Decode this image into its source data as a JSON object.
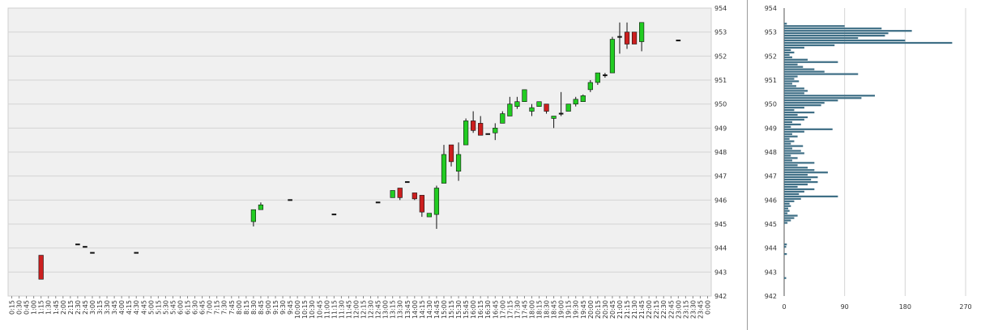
{
  "chart_data": [
    {
      "type": "candlestick",
      "title": "",
      "xlabel": "",
      "ylabel": "",
      "ylim": [
        942,
        954
      ],
      "y_ticks": [
        942,
        943,
        944,
        945,
        946,
        947,
        948,
        949,
        950,
        951,
        952,
        953,
        954
      ],
      "grid": true,
      "x_ticks": [
        "0:15",
        "0:30",
        "0:45",
        "1:00",
        "1:15",
        "1:30",
        "1:45",
        "2:00",
        "2:15",
        "2:30",
        "2:45",
        "3:00",
        "3:15",
        "3:30",
        "3:45",
        "4:00",
        "4:15",
        "4:30",
        "4:45",
        "5:00",
        "5:15",
        "5:30",
        "5:45",
        "6:00",
        "6:15",
        "6:30",
        "6:45",
        "7:00",
        "7:15",
        "7:30",
        "7:45",
        "8:00",
        "8:15",
        "8:30",
        "8:45",
        "9:00",
        "9:15",
        "9:30",
        "9:45",
        "10:00",
        "10:15",
        "10:30",
        "10:45",
        "11:00",
        "11:15",
        "11:30",
        "11:45",
        "12:00",
        "12:15",
        "12:30",
        "12:45",
        "13:00",
        "13:15",
        "13:30",
        "13:45",
        "14:00",
        "14:15",
        "14:30",
        "14:45",
        "15:00",
        "15:15",
        "15:30",
        "15:45",
        "16:00",
        "16:15",
        "16:30",
        "16:45",
        "17:00",
        "17:15",
        "17:30",
        "17:45",
        "18:00",
        "18:15",
        "18:30",
        "18:45",
        "19:00",
        "19:15",
        "19:30",
        "19:45",
        "20:00",
        "20:15",
        "20:30",
        "20:45",
        "21:00",
        "21:15",
        "21:30",
        "21:45",
        "22:00",
        "22:15",
        "22:30",
        "22:45",
        "23:00",
        "23:15",
        "23:30",
        "23:45",
        "0:00"
      ],
      "colors": {
        "up": "#22cc22",
        "down": "#cc1f1f",
        "doji": "#111111",
        "wick": "#111111"
      },
      "candles": [
        {
          "t": "1:15",
          "o": 943.7,
          "h": 943.7,
          "l": 942.7,
          "c": 942.7
        },
        {
          "t": "2:30",
          "o": 944.15,
          "h": 944.15,
          "l": 944.15,
          "c": 944.15
        },
        {
          "t": "2:45",
          "o": 944.05,
          "h": 944.05,
          "l": 944.05,
          "c": 944.05
        },
        {
          "t": "3:00",
          "o": 943.8,
          "h": 943.8,
          "l": 943.8,
          "c": 943.8
        },
        {
          "t": "4:30",
          "o": 943.8,
          "h": 943.8,
          "l": 943.8,
          "c": 943.8
        },
        {
          "t": "8:30",
          "o": 945.1,
          "h": 945.6,
          "l": 944.9,
          "c": 945.6
        },
        {
          "t": "8:45",
          "o": 945.6,
          "h": 945.9,
          "l": 945.6,
          "c": 945.8
        },
        {
          "t": "9:45",
          "o": 946.0,
          "h": 946.0,
          "l": 946.0,
          "c": 946.0
        },
        {
          "t": "11:15",
          "o": 945.4,
          "h": 945.4,
          "l": 945.4,
          "c": 945.4
        },
        {
          "t": "12:45",
          "o": 945.9,
          "h": 945.9,
          "l": 945.9,
          "c": 945.9
        },
        {
          "t": "13:15",
          "o": 946.1,
          "h": 946.4,
          "l": 946.1,
          "c": 946.4
        },
        {
          "t": "13:30",
          "o": 946.5,
          "h": 946.5,
          "l": 946.0,
          "c": 946.1
        },
        {
          "t": "13:45",
          "o": 946.75,
          "h": 946.75,
          "l": 946.75,
          "c": 946.75
        },
        {
          "t": "14:00",
          "o": 946.3,
          "h": 946.3,
          "l": 946.0,
          "c": 946.05
        },
        {
          "t": "14:15",
          "o": 946.2,
          "h": 946.2,
          "l": 945.3,
          "c": 945.5
        },
        {
          "t": "14:30",
          "o": 945.3,
          "h": 945.45,
          "l": 945.3,
          "c": 945.45
        },
        {
          "t": "14:45",
          "o": 945.4,
          "h": 946.6,
          "l": 944.8,
          "c": 946.5
        },
        {
          "t": "15:00",
          "o": 946.7,
          "h": 948.3,
          "l": 946.7,
          "c": 947.9
        },
        {
          "t": "15:15",
          "o": 948.3,
          "h": 948.3,
          "l": 947.4,
          "c": 947.6
        },
        {
          "t": "15:30",
          "o": 947.2,
          "h": 948.4,
          "l": 946.8,
          "c": 947.9
        },
        {
          "t": "15:45",
          "o": 948.3,
          "h": 949.4,
          "l": 948.3,
          "c": 949.3
        },
        {
          "t": "16:00",
          "o": 949.3,
          "h": 949.7,
          "l": 948.8,
          "c": 948.9
        },
        {
          "t": "16:15",
          "o": 949.2,
          "h": 949.5,
          "l": 948.7,
          "c": 948.7
        },
        {
          "t": "16:30",
          "o": 948.75,
          "h": 948.75,
          "l": 948.75,
          "c": 948.75
        },
        {
          "t": "16:45",
          "o": 948.8,
          "h": 949.2,
          "l": 948.5,
          "c": 949.0
        },
        {
          "t": "17:00",
          "o": 949.2,
          "h": 949.7,
          "l": 949.2,
          "c": 949.6
        },
        {
          "t": "17:15",
          "o": 949.5,
          "h": 950.3,
          "l": 949.5,
          "c": 950.0
        },
        {
          "t": "17:30",
          "o": 949.9,
          "h": 950.3,
          "l": 949.8,
          "c": 950.1
        },
        {
          "t": "17:45",
          "o": 950.1,
          "h": 950.6,
          "l": 950.1,
          "c": 950.6
        },
        {
          "t": "18:00",
          "o": 949.7,
          "h": 950.0,
          "l": 949.5,
          "c": 949.85
        },
        {
          "t": "18:15",
          "o": 949.9,
          "h": 950.1,
          "l": 949.9,
          "c": 950.1
        },
        {
          "t": "18:30",
          "o": 950.0,
          "h": 950.0,
          "l": 949.6,
          "c": 949.7
        },
        {
          "t": "18:45",
          "o": 949.4,
          "h": 949.5,
          "l": 949.0,
          "c": 949.5
        },
        {
          "t": "19:00",
          "o": 949.6,
          "h": 950.5,
          "l": 949.5,
          "c": 949.6
        },
        {
          "t": "19:15",
          "o": 949.7,
          "h": 950.0,
          "l": 949.7,
          "c": 950.0
        },
        {
          "t": "19:30",
          "o": 950.0,
          "h": 950.3,
          "l": 949.9,
          "c": 950.2
        },
        {
          "t": "19:45",
          "o": 950.1,
          "h": 950.4,
          "l": 950.1,
          "c": 950.35
        },
        {
          "t": "20:00",
          "o": 950.6,
          "h": 951.0,
          "l": 950.5,
          "c": 950.9
        },
        {
          "t": "20:15",
          "o": 950.9,
          "h": 951.3,
          "l": 950.8,
          "c": 951.3
        },
        {
          "t": "20:30",
          "o": 951.2,
          "h": 951.3,
          "l": 951.1,
          "c": 951.15
        },
        {
          "t": "20:45",
          "o": 951.3,
          "h": 952.8,
          "l": 951.3,
          "c": 952.7
        },
        {
          "t": "21:00",
          "o": 952.8,
          "h": 953.4,
          "l": 952.1,
          "c": 952.75
        },
        {
          "t": "21:15",
          "o": 953.0,
          "h": 953.4,
          "l": 952.3,
          "c": 952.5
        },
        {
          "t": "21:30",
          "o": 953.0,
          "h": 953.0,
          "l": 952.5,
          "c": 952.5
        },
        {
          "t": "21:45",
          "o": 952.6,
          "h": 953.4,
          "l": 952.2,
          "c": 953.4
        },
        {
          "t": "23:00",
          "o": 952.65,
          "h": 952.65,
          "l": 952.65,
          "c": 952.65
        }
      ]
    },
    {
      "type": "bar",
      "orientation": "horizontal",
      "title": "",
      "xlabel": "",
      "ylabel": "",
      "xlim": [
        0,
        270
      ],
      "x_ticks": [
        0,
        90,
        180,
        270
      ],
      "ylim": [
        942,
        954
      ],
      "y_ticks": [
        942,
        943,
        944,
        945,
        946,
        947,
        948,
        949,
        950,
        951,
        952,
        953,
        954
      ],
      "grid": true,
      "bar_color": "#3f6f86",
      "bars": [
        {
          "price": 953.35,
          "value": 4
        },
        {
          "price": 953.25,
          "value": 90
        },
        {
          "price": 953.15,
          "value": 145
        },
        {
          "price": 953.05,
          "value": 190
        },
        {
          "price": 952.95,
          "value": 155
        },
        {
          "price": 952.85,
          "value": 150
        },
        {
          "price": 952.75,
          "value": 110
        },
        {
          "price": 952.65,
          "value": 180
        },
        {
          "price": 952.55,
          "value": 250
        },
        {
          "price": 952.45,
          "value": 75
        },
        {
          "price": 952.35,
          "value": 30
        },
        {
          "price": 952.25,
          "value": 10
        },
        {
          "price": 952.15,
          "value": 15
        },
        {
          "price": 952.05,
          "value": 8
        },
        {
          "price": 951.95,
          "value": 12
        },
        {
          "price": 951.85,
          "value": 35
        },
        {
          "price": 951.75,
          "value": 80
        },
        {
          "price": 951.65,
          "value": 20
        },
        {
          "price": 951.55,
          "value": 28
        },
        {
          "price": 951.45,
          "value": 45
        },
        {
          "price": 951.35,
          "value": 60
        },
        {
          "price": 951.25,
          "value": 110
        },
        {
          "price": 951.15,
          "value": 20
        },
        {
          "price": 951.05,
          "value": 15
        },
        {
          "price": 950.95,
          "value": 22
        },
        {
          "price": 950.85,
          "value": 12
        },
        {
          "price": 950.75,
          "value": 18
        },
        {
          "price": 950.65,
          "value": 30
        },
        {
          "price": 950.55,
          "value": 35
        },
        {
          "price": 950.45,
          "value": 30
        },
        {
          "price": 950.35,
          "value": 135
        },
        {
          "price": 950.25,
          "value": 115
        },
        {
          "price": 950.15,
          "value": 80
        },
        {
          "price": 950.05,
          "value": 60
        },
        {
          "price": 949.95,
          "value": 55
        },
        {
          "price": 949.85,
          "value": 30
        },
        {
          "price": 949.75,
          "value": 15
        },
        {
          "price": 949.65,
          "value": 45
        },
        {
          "price": 949.55,
          "value": 20
        },
        {
          "price": 949.45,
          "value": 35
        },
        {
          "price": 949.35,
          "value": 30
        },
        {
          "price": 949.25,
          "value": 12
        },
        {
          "price": 949.15,
          "value": 25
        },
        {
          "price": 949.05,
          "value": 10
        },
        {
          "price": 948.95,
          "value": 72
        },
        {
          "price": 948.85,
          "value": 30
        },
        {
          "price": 948.75,
          "value": 12
        },
        {
          "price": 948.65,
          "value": 20
        },
        {
          "price": 948.55,
          "value": 8
        },
        {
          "price": 948.45,
          "value": 15
        },
        {
          "price": 948.35,
          "value": 10
        },
        {
          "price": 948.25,
          "value": 28
        },
        {
          "price": 948.15,
          "value": 12
        },
        {
          "price": 948.05,
          "value": 25
        },
        {
          "price": 947.95,
          "value": 30
        },
        {
          "price": 947.85,
          "value": 10
        },
        {
          "price": 947.75,
          "value": 20
        },
        {
          "price": 947.65,
          "value": 12
        },
        {
          "price": 947.55,
          "value": 45
        },
        {
          "price": 947.45,
          "value": 20
        },
        {
          "price": 947.35,
          "value": 35
        },
        {
          "price": 947.25,
          "value": 45
        },
        {
          "price": 947.15,
          "value": 65
        },
        {
          "price": 947.05,
          "value": 35
        },
        {
          "price": 946.95,
          "value": 50
        },
        {
          "price": 946.85,
          "value": 40
        },
        {
          "price": 946.75,
          "value": 50
        },
        {
          "price": 946.65,
          "value": 35
        },
        {
          "price": 946.55,
          "value": 20
        },
        {
          "price": 946.45,
          "value": 45
        },
        {
          "price": 946.35,
          "value": 30
        },
        {
          "price": 946.25,
          "value": 22
        },
        {
          "price": 946.15,
          "value": 80
        },
        {
          "price": 946.05,
          "value": 25
        },
        {
          "price": 945.95,
          "value": 15
        },
        {
          "price": 945.85,
          "value": 8
        },
        {
          "price": 945.75,
          "value": 10
        },
        {
          "price": 945.65,
          "value": 6
        },
        {
          "price": 945.55,
          "value": 8
        },
        {
          "price": 945.45,
          "value": 5
        },
        {
          "price": 945.35,
          "value": 20
        },
        {
          "price": 945.25,
          "value": 15
        },
        {
          "price": 945.15,
          "value": 10
        },
        {
          "price": 945.05,
          "value": 5
        },
        {
          "price": 944.15,
          "value": 4
        },
        {
          "price": 944.05,
          "value": 3
        },
        {
          "price": 943.75,
          "value": 4
        },
        {
          "price": 942.75,
          "value": 3
        }
      ]
    }
  ]
}
